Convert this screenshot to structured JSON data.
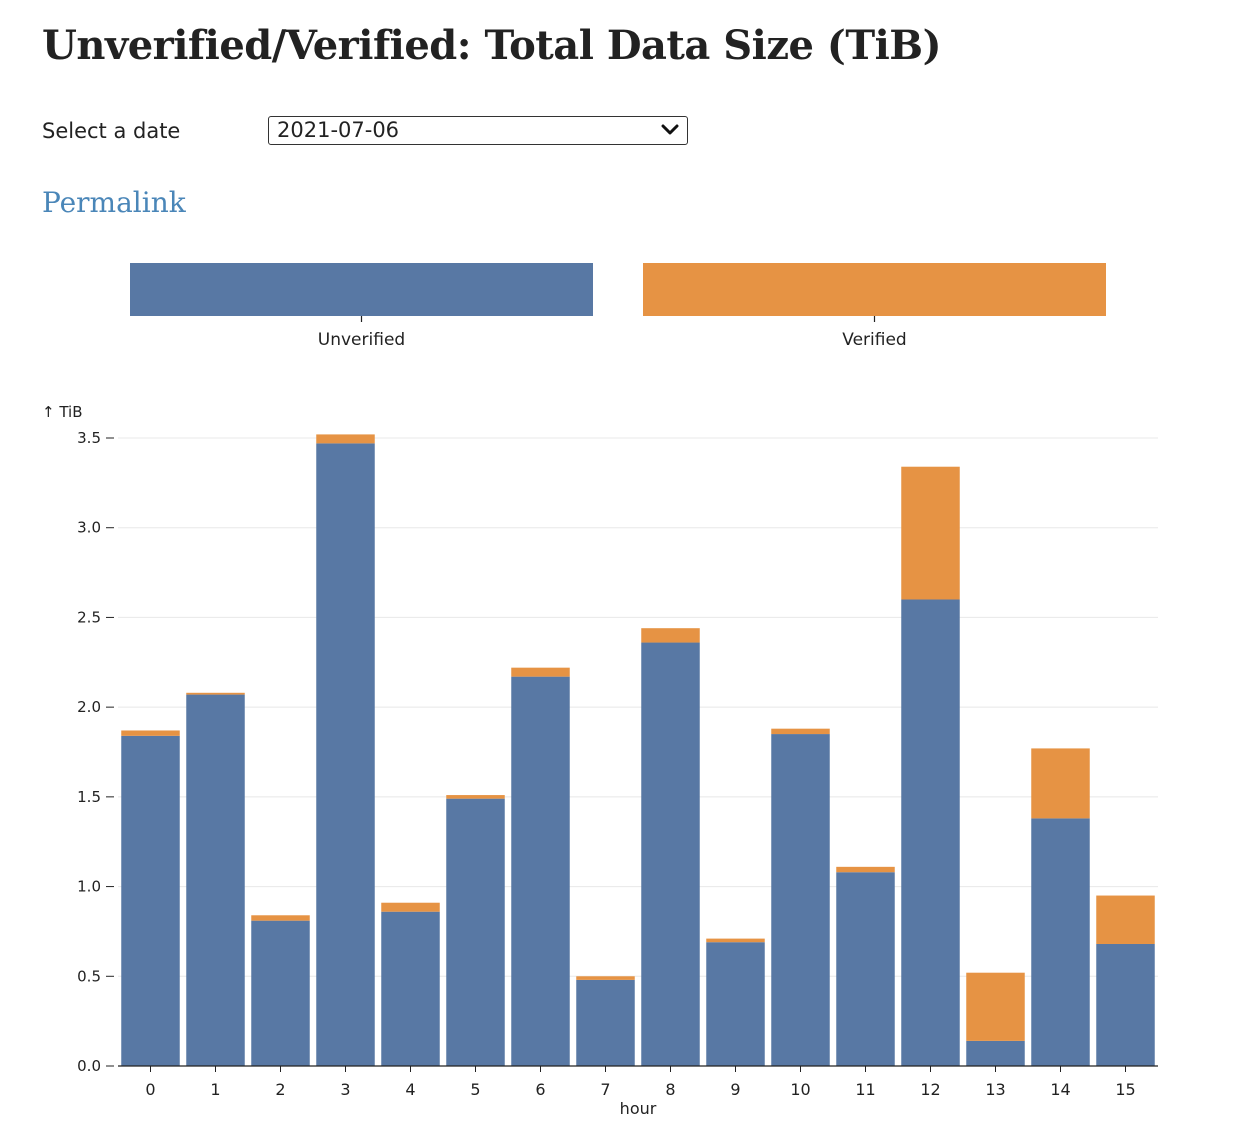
{
  "page": {
    "title": "Unverified/Verified: Total Data Size (TiB)",
    "date_label": "Select a date",
    "date_value": "2021-07-06",
    "permalink": "Permalink"
  },
  "icons": {
    "select_arrow": "chevron-down-icon"
  },
  "colors": {
    "unverified": "#5878a4",
    "verified": "#e69344",
    "link": "#4a86b8"
  },
  "chart_data": {
    "type": "bar",
    "stacked": true,
    "legend": {
      "position": "top",
      "entries": [
        "Unverified",
        "Verified"
      ]
    },
    "xlabel": "hour",
    "ylabel": "↑ TiB",
    "ylim": [
      0,
      3.5
    ],
    "yticks": [
      "0.0",
      "0.5",
      "1.0",
      "1.5",
      "2.0",
      "2.5",
      "3.0",
      "3.5"
    ],
    "grid": true,
    "categories": [
      "0",
      "1",
      "2",
      "3",
      "4",
      "5",
      "6",
      "7",
      "8",
      "9",
      "10",
      "11",
      "12",
      "13",
      "14",
      "15"
    ],
    "series": [
      {
        "name": "Unverified",
        "color": "#5878a4",
        "values": [
          1.84,
          2.07,
          0.81,
          3.47,
          0.86,
          1.49,
          2.17,
          0.48,
          2.36,
          0.69,
          1.85,
          1.08,
          2.6,
          0.14,
          1.38,
          0.68
        ]
      },
      {
        "name": "Verified",
        "color": "#e69344",
        "values": [
          0.03,
          0.01,
          0.03,
          0.05,
          0.05,
          0.02,
          0.05,
          0.02,
          0.08,
          0.02,
          0.03,
          0.03,
          0.74,
          0.38,
          0.39,
          0.27
        ]
      }
    ]
  }
}
